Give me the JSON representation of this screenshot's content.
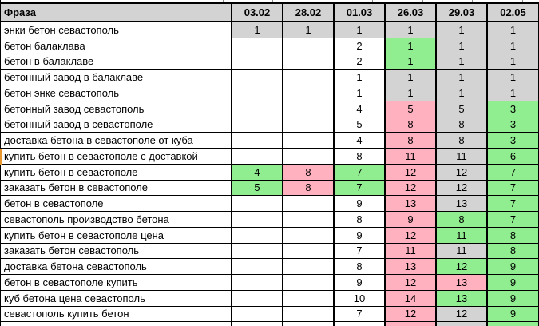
{
  "sheet": {
    "header": {
      "phrase_label": "Фраза",
      "dates": [
        "03.02",
        "28.02",
        "01.03",
        "26.03",
        "29.03",
        "02.05"
      ]
    },
    "palette": {
      "white": "#FFFFFF",
      "green": "#90EE90",
      "pink": "#FFB1BF",
      "gray": "#D3D3D3",
      "header_bg": "#D3D3D3",
      "marker_orange": "#E8972F"
    },
    "rows": [
      {
        "phrase": "энки бетон севастополь",
        "marked": false,
        "cells": [
          {
            "v": "1",
            "bg": "gray"
          },
          {
            "v": "1",
            "bg": "gray"
          },
          {
            "v": "1",
            "bg": "gray"
          },
          {
            "v": "1",
            "bg": "gray"
          },
          {
            "v": "1",
            "bg": "gray"
          },
          {
            "v": "1",
            "bg": "gray"
          }
        ]
      },
      {
        "phrase": "бетон балаклава",
        "marked": false,
        "cells": [
          {
            "v": "",
            "bg": "white"
          },
          {
            "v": "",
            "bg": "white"
          },
          {
            "v": "2",
            "bg": "white"
          },
          {
            "v": "1",
            "bg": "green"
          },
          {
            "v": "1",
            "bg": "gray"
          },
          {
            "v": "1",
            "bg": "gray"
          }
        ]
      },
      {
        "phrase": "бетон в балаклаве",
        "marked": false,
        "cells": [
          {
            "v": "",
            "bg": "white"
          },
          {
            "v": "",
            "bg": "white"
          },
          {
            "v": "2",
            "bg": "white"
          },
          {
            "v": "1",
            "bg": "green"
          },
          {
            "v": "1",
            "bg": "gray"
          },
          {
            "v": "1",
            "bg": "gray"
          }
        ]
      },
      {
        "phrase": "бетонный завод в балаклаве",
        "marked": false,
        "cells": [
          {
            "v": "",
            "bg": "white"
          },
          {
            "v": "",
            "bg": "white"
          },
          {
            "v": "1",
            "bg": "white"
          },
          {
            "v": "1",
            "bg": "gray"
          },
          {
            "v": "1",
            "bg": "gray"
          },
          {
            "v": "1",
            "bg": "gray"
          }
        ]
      },
      {
        "phrase": "бетон энке севастополь",
        "marked": false,
        "cells": [
          {
            "v": "",
            "bg": "white"
          },
          {
            "v": "",
            "bg": "white"
          },
          {
            "v": "1",
            "bg": "white"
          },
          {
            "v": "1",
            "bg": "gray"
          },
          {
            "v": "1",
            "bg": "gray"
          },
          {
            "v": "1",
            "bg": "gray"
          }
        ]
      },
      {
        "phrase": "бетонный завод севастополь",
        "marked": false,
        "cells": [
          {
            "v": "",
            "bg": "white"
          },
          {
            "v": "",
            "bg": "white"
          },
          {
            "v": "4",
            "bg": "white"
          },
          {
            "v": "5",
            "bg": "pink"
          },
          {
            "v": "5",
            "bg": "gray"
          },
          {
            "v": "3",
            "bg": "green"
          }
        ]
      },
      {
        "phrase": "бетонный завод в севастополе",
        "marked": false,
        "cells": [
          {
            "v": "",
            "bg": "white"
          },
          {
            "v": "",
            "bg": "white"
          },
          {
            "v": "5",
            "bg": "white"
          },
          {
            "v": "8",
            "bg": "pink"
          },
          {
            "v": "8",
            "bg": "gray"
          },
          {
            "v": "3",
            "bg": "green"
          }
        ]
      },
      {
        "phrase": "доставка бетона в севастополе от куба",
        "marked": false,
        "cells": [
          {
            "v": "",
            "bg": "white"
          },
          {
            "v": "",
            "bg": "white"
          },
          {
            "v": "4",
            "bg": "white"
          },
          {
            "v": "8",
            "bg": "pink"
          },
          {
            "v": "8",
            "bg": "gray"
          },
          {
            "v": "3",
            "bg": "green"
          }
        ]
      },
      {
        "phrase": "купить бетон в севастополе с доставкой",
        "marked": true,
        "cells": [
          {
            "v": "",
            "bg": "white"
          },
          {
            "v": "",
            "bg": "white"
          },
          {
            "v": "8",
            "bg": "white"
          },
          {
            "v": "11",
            "bg": "pink"
          },
          {
            "v": "11",
            "bg": "gray"
          },
          {
            "v": "6",
            "bg": "green"
          }
        ]
      },
      {
        "phrase": "купить бетон в севастополе",
        "marked": false,
        "cells": [
          {
            "v": "4",
            "bg": "green"
          },
          {
            "v": "8",
            "bg": "pink"
          },
          {
            "v": "7",
            "bg": "green"
          },
          {
            "v": "12",
            "bg": "pink"
          },
          {
            "v": "12",
            "bg": "gray"
          },
          {
            "v": "7",
            "bg": "green"
          }
        ]
      },
      {
        "phrase": "заказать бетон в севастополе",
        "marked": false,
        "cells": [
          {
            "v": "5",
            "bg": "green"
          },
          {
            "v": "8",
            "bg": "pink"
          },
          {
            "v": "7",
            "bg": "green"
          },
          {
            "v": "12",
            "bg": "pink"
          },
          {
            "v": "12",
            "bg": "gray"
          },
          {
            "v": "7",
            "bg": "green"
          }
        ]
      },
      {
        "phrase": "бетон в севастополе",
        "marked": false,
        "cells": [
          {
            "v": "",
            "bg": "white"
          },
          {
            "v": "",
            "bg": "white"
          },
          {
            "v": "9",
            "bg": "white"
          },
          {
            "v": "13",
            "bg": "pink"
          },
          {
            "v": "13",
            "bg": "gray"
          },
          {
            "v": "7",
            "bg": "green"
          }
        ]
      },
      {
        "phrase": "севастополь производство бетона",
        "marked": false,
        "cells": [
          {
            "v": "",
            "bg": "white"
          },
          {
            "v": "",
            "bg": "white"
          },
          {
            "v": "8",
            "bg": "white"
          },
          {
            "v": "9",
            "bg": "pink"
          },
          {
            "v": "8",
            "bg": "green"
          },
          {
            "v": "7",
            "bg": "green"
          }
        ]
      },
      {
        "phrase": "купить бетон в севастополе цена",
        "marked": false,
        "cells": [
          {
            "v": "",
            "bg": "white"
          },
          {
            "v": "",
            "bg": "white"
          },
          {
            "v": "9",
            "bg": "white"
          },
          {
            "v": "12",
            "bg": "pink"
          },
          {
            "v": "11",
            "bg": "green"
          },
          {
            "v": "8",
            "bg": "green"
          }
        ]
      },
      {
        "phrase": "заказать бетон севастополь",
        "marked": false,
        "cells": [
          {
            "v": "",
            "bg": "white"
          },
          {
            "v": "",
            "bg": "white"
          },
          {
            "v": "7",
            "bg": "white"
          },
          {
            "v": "11",
            "bg": "pink"
          },
          {
            "v": "11",
            "bg": "gray"
          },
          {
            "v": "8",
            "bg": "green"
          }
        ]
      },
      {
        "phrase": "доставка бетона севастополь",
        "marked": false,
        "cells": [
          {
            "v": "",
            "bg": "white"
          },
          {
            "v": "",
            "bg": "white"
          },
          {
            "v": "8",
            "bg": "white"
          },
          {
            "v": "13",
            "bg": "pink"
          },
          {
            "v": "12",
            "bg": "green"
          },
          {
            "v": "9",
            "bg": "green"
          }
        ]
      },
      {
        "phrase": "бетон в севастополе купить",
        "marked": false,
        "cells": [
          {
            "v": "",
            "bg": "white"
          },
          {
            "v": "",
            "bg": "white"
          },
          {
            "v": "9",
            "bg": "white"
          },
          {
            "v": "12",
            "bg": "pink"
          },
          {
            "v": "13",
            "bg": "pink"
          },
          {
            "v": "9",
            "bg": "green"
          }
        ]
      },
      {
        "phrase": "куб бетона цена севастополь",
        "marked": false,
        "cells": [
          {
            "v": "",
            "bg": "white"
          },
          {
            "v": "",
            "bg": "white"
          },
          {
            "v": "10",
            "bg": "white"
          },
          {
            "v": "14",
            "bg": "pink"
          },
          {
            "v": "13",
            "bg": "green"
          },
          {
            "v": "9",
            "bg": "green"
          }
        ]
      },
      {
        "phrase": "севастополь купить бетон",
        "marked": false,
        "cells": [
          {
            "v": "",
            "bg": "white"
          },
          {
            "v": "",
            "bg": "white"
          },
          {
            "v": "7",
            "bg": "white"
          },
          {
            "v": "12",
            "bg": "pink"
          },
          {
            "v": "12",
            "bg": "gray"
          },
          {
            "v": "9",
            "bg": "green"
          }
        ]
      }
    ],
    "partial_bottom_row": {
      "cells": [
        {
          "v": "",
          "bg": "white"
        },
        {
          "v": "",
          "bg": "white"
        },
        {
          "v": "",
          "bg": "white"
        },
        {
          "v": "",
          "bg": "pink"
        },
        {
          "v": "",
          "bg": "gray"
        },
        {
          "v": "",
          "bg": "green"
        }
      ]
    }
  }
}
